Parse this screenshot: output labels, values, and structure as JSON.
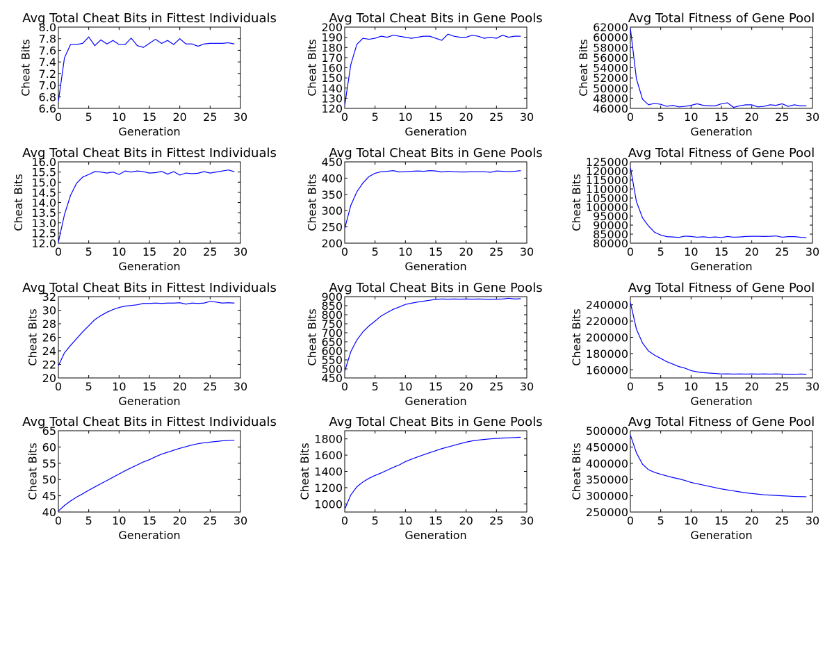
{
  "chart_data": [
    {
      "type": "line",
      "title": "Avg Total Cheat Bits in Fittest Individuals",
      "xlabel": "Generation",
      "ylabel": "Cheat Bits",
      "xlim": [
        0,
        30
      ],
      "ylim": [
        6.6,
        8.0
      ],
      "xticks": [
        0,
        5,
        10,
        15,
        20,
        25,
        30
      ],
      "yticks": [
        6.6,
        6.8,
        7.0,
        7.2,
        7.4,
        7.6,
        7.8,
        8.0
      ],
      "ytick_decimals": 1,
      "line_color": "#0000ff",
      "x": [
        0,
        1,
        2,
        3,
        4,
        5,
        6,
        7,
        8,
        9,
        10,
        11,
        12,
        13,
        14,
        15,
        16,
        17,
        18,
        19,
        20,
        21,
        22,
        23,
        24,
        25,
        26,
        27,
        28,
        29
      ],
      "y": [
        6.72,
        7.47,
        7.7,
        7.7,
        7.72,
        7.83,
        7.68,
        7.78,
        7.71,
        7.77,
        7.7,
        7.7,
        7.81,
        7.68,
        7.65,
        7.72,
        7.79,
        7.72,
        7.77,
        7.7,
        7.8,
        7.71,
        7.71,
        7.67,
        7.71,
        7.72,
        7.72,
        7.72,
        7.73,
        7.71
      ]
    },
    {
      "type": "line",
      "title": "Avg Total Cheat Bits in Gene Pools",
      "xlabel": "Generation",
      "ylabel": "Cheat Bits",
      "xlim": [
        0,
        30
      ],
      "ylim": [
        120,
        200
      ],
      "xticks": [
        0,
        5,
        10,
        15,
        20,
        25,
        30
      ],
      "yticks": [
        120,
        130,
        140,
        150,
        160,
        170,
        180,
        190,
        200
      ],
      "ytick_decimals": 0,
      "line_color": "#0000ff",
      "x": [
        0,
        1,
        2,
        3,
        4,
        5,
        6,
        7,
        8,
        9,
        10,
        11,
        12,
        13,
        14,
        15,
        16,
        17,
        18,
        19,
        20,
        21,
        22,
        23,
        24,
        25,
        26,
        27,
        28,
        29
      ],
      "y": [
        123,
        163,
        183,
        189,
        188,
        189,
        191,
        190,
        192,
        191,
        190,
        189,
        190,
        191,
        191,
        189,
        187,
        193,
        191,
        190,
        190,
        192,
        191,
        189,
        190,
        189,
        192,
        190,
        191,
        191
      ]
    },
    {
      "type": "line",
      "title": "Avg Total Fitness of Gene Pool",
      "xlabel": "Generation",
      "ylabel": "Cheat Bits",
      "xlim": [
        0,
        30
      ],
      "ylim": [
        46000,
        62000
      ],
      "xticks": [
        0,
        5,
        10,
        15,
        20,
        25,
        30
      ],
      "yticks": [
        46000,
        48000,
        50000,
        52000,
        54000,
        56000,
        58000,
        60000,
        62000
      ],
      "ytick_decimals": 0,
      "line_color": "#0000ff",
      "x": [
        0,
        1,
        2,
        3,
        4,
        5,
        6,
        7,
        8,
        9,
        10,
        11,
        12,
        13,
        14,
        15,
        16,
        17,
        18,
        19,
        20,
        21,
        22,
        23,
        24,
        25,
        26,
        27,
        28,
        29
      ],
      "y": [
        61800,
        51800,
        47800,
        46700,
        47000,
        46800,
        46400,
        46600,
        46300,
        46400,
        46600,
        46900,
        46600,
        46500,
        46500,
        46900,
        47100,
        46200,
        46500,
        46700,
        46700,
        46300,
        46400,
        46700,
        46600,
        46900,
        46400,
        46700,
        46500,
        46500
      ]
    },
    {
      "type": "line",
      "title": "Avg Total Cheat Bits in Fittest Individuals",
      "xlabel": "Generation",
      "ylabel": "Cheat Bits",
      "xlim": [
        0,
        30
      ],
      "ylim": [
        12.0,
        16.0
      ],
      "xticks": [
        0,
        5,
        10,
        15,
        20,
        25,
        30
      ],
      "yticks": [
        12.0,
        12.5,
        13.0,
        13.5,
        14.0,
        14.5,
        15.0,
        15.5,
        16.0
      ],
      "ytick_decimals": 1,
      "line_color": "#0000ff",
      "x": [
        0,
        1,
        2,
        3,
        4,
        5,
        6,
        7,
        8,
        9,
        10,
        11,
        12,
        13,
        14,
        15,
        16,
        17,
        18,
        19,
        20,
        21,
        22,
        23,
        24,
        25,
        26,
        27,
        28,
        29
      ],
      "y": [
        12.05,
        13.4,
        14.35,
        14.95,
        15.25,
        15.38,
        15.52,
        15.5,
        15.45,
        15.5,
        15.38,
        15.55,
        15.5,
        15.55,
        15.52,
        15.45,
        15.47,
        15.53,
        15.4,
        15.52,
        15.35,
        15.45,
        15.42,
        15.44,
        15.52,
        15.45,
        15.5,
        15.55,
        15.6,
        15.52
      ]
    },
    {
      "type": "line",
      "title": "Avg Total Cheat Bits in Gene Pools",
      "xlabel": "Generation",
      "ylabel": "Cheat Bits",
      "xlim": [
        0,
        30
      ],
      "ylim": [
        200,
        450
      ],
      "xticks": [
        0,
        5,
        10,
        15,
        20,
        25,
        30
      ],
      "yticks": [
        200,
        250,
        300,
        350,
        400,
        450
      ],
      "ytick_decimals": 0,
      "line_color": "#0000ff",
      "x": [
        0,
        1,
        2,
        3,
        4,
        5,
        6,
        7,
        8,
        9,
        10,
        11,
        12,
        13,
        14,
        15,
        16,
        17,
        18,
        19,
        20,
        21,
        22,
        23,
        24,
        25,
        26,
        27,
        28,
        29
      ],
      "y": [
        245,
        316,
        358,
        385,
        405,
        415,
        420,
        421,
        423,
        419,
        420,
        421,
        422,
        421,
        423,
        422,
        419,
        421,
        420,
        419,
        419,
        420,
        420,
        420,
        418,
        422,
        421,
        420,
        421,
        423
      ]
    },
    {
      "type": "line",
      "title": "Avg Total Fitness of Gene Pool",
      "xlabel": "Generation",
      "ylabel": "Cheat Bits",
      "xlim": [
        0,
        30
      ],
      "ylim": [
        80000,
        125000
      ],
      "xticks": [
        0,
        5,
        10,
        15,
        20,
        25,
        30
      ],
      "yticks": [
        80000,
        85000,
        90000,
        95000,
        100000,
        105000,
        110000,
        115000,
        120000,
        125000
      ],
      "ytick_decimals": 0,
      "line_color": "#0000ff",
      "x": [
        0,
        1,
        2,
        3,
        4,
        5,
        6,
        7,
        8,
        9,
        10,
        11,
        12,
        13,
        14,
        15,
        16,
        17,
        18,
        19,
        20,
        21,
        22,
        23,
        24,
        25,
        26,
        27,
        28,
        29
      ],
      "y": [
        122000,
        103000,
        94000,
        89500,
        86000,
        84500,
        83600,
        83400,
        83200,
        83900,
        83700,
        83300,
        83500,
        83200,
        83400,
        83100,
        83700,
        83300,
        83400,
        83700,
        83800,
        83800,
        83700,
        83800,
        84000,
        83300,
        83600,
        83600,
        83300,
        83000
      ]
    },
    {
      "type": "line",
      "title": "Avg Total Cheat Bits in Fittest Individuals",
      "xlabel": "Generation",
      "ylabel": "Cheat Bits",
      "xlim": [
        0,
        30
      ],
      "ylim": [
        20,
        32
      ],
      "xticks": [
        0,
        5,
        10,
        15,
        20,
        25,
        30
      ],
      "yticks": [
        20,
        22,
        24,
        26,
        28,
        30,
        32
      ],
      "ytick_decimals": 0,
      "line_color": "#0000ff",
      "x": [
        0,
        1,
        2,
        3,
        4,
        5,
        6,
        7,
        8,
        9,
        10,
        11,
        12,
        13,
        14,
        15,
        16,
        17,
        18,
        19,
        20,
        21,
        22,
        23,
        24,
        25,
        26,
        27,
        28,
        29
      ],
      "y": [
        21.8,
        23.7,
        24.8,
        25.8,
        26.8,
        27.7,
        28.6,
        29.2,
        29.7,
        30.1,
        30.4,
        30.6,
        30.7,
        30.8,
        31.0,
        31.0,
        31.05,
        31.0,
        31.05,
        31.05,
        31.1,
        30.9,
        31.05,
        31.0,
        31.05,
        31.3,
        31.2,
        31.05,
        31.1,
        31.05
      ]
    },
    {
      "type": "line",
      "title": "Avg Total Cheat Bits in Gene Pools",
      "xlabel": "Generation",
      "ylabel": "Cheat Bits",
      "xlim": [
        0,
        30
      ],
      "ylim": [
        450,
        900
      ],
      "xticks": [
        0,
        5,
        10,
        15,
        20,
        25,
        30
      ],
      "yticks": [
        450,
        500,
        550,
        600,
        650,
        700,
        750,
        800,
        850,
        900
      ],
      "ytick_decimals": 0,
      "line_color": "#0000ff",
      "x": [
        0,
        1,
        2,
        3,
        4,
        5,
        6,
        7,
        8,
        9,
        10,
        11,
        12,
        13,
        14,
        15,
        16,
        17,
        18,
        19,
        20,
        21,
        22,
        23,
        24,
        25,
        26,
        27,
        28,
        29
      ],
      "y": [
        487,
        595,
        660,
        705,
        738,
        765,
        793,
        812,
        830,
        843,
        857,
        864,
        870,
        875,
        880,
        885,
        887,
        886,
        887,
        886,
        887,
        886,
        887,
        886,
        885,
        886,
        887,
        891,
        887,
        889
      ]
    },
    {
      "type": "line",
      "title": "Avg Total Fitness of Gene Pool",
      "xlabel": "Generation",
      "ylabel": "Cheat Bits",
      "xlim": [
        0,
        30
      ],
      "ylim": [
        150000,
        250000
      ],
      "xticks": [
        0,
        5,
        10,
        15,
        20,
        25,
        30
      ],
      "yticks": [
        160000,
        180000,
        200000,
        220000,
        240000
      ],
      "ytick_decimals": 0,
      "line_color": "#0000ff",
      "x": [
        0,
        1,
        2,
        3,
        4,
        5,
        6,
        7,
        8,
        9,
        10,
        11,
        12,
        13,
        14,
        15,
        16,
        17,
        18,
        19,
        20,
        21,
        22,
        23,
        24,
        25,
        26,
        27,
        28,
        29
      ],
      "y": [
        243000,
        210000,
        193000,
        183000,
        178000,
        174000,
        170000,
        167000,
        164000,
        162000,
        159000,
        157500,
        156500,
        156000,
        155500,
        154800,
        155000,
        154700,
        154900,
        154700,
        154900,
        154700,
        154900,
        154700,
        154900,
        154700,
        154500,
        154300,
        154800,
        154500
      ]
    },
    {
      "type": "line",
      "title": "Avg Total Cheat Bits in Fittest Individuals",
      "xlabel": "Generation",
      "ylabel": "Cheat Bits",
      "xlim": [
        0,
        30
      ],
      "ylim": [
        40,
        65
      ],
      "xticks": [
        0,
        5,
        10,
        15,
        20,
        25,
        30
      ],
      "yticks": [
        40,
        45,
        50,
        55,
        60,
        65
      ],
      "ytick_decimals": 0,
      "line_color": "#0000ff",
      "x": [
        0,
        1,
        2,
        3,
        4,
        5,
        6,
        7,
        8,
        9,
        10,
        11,
        12,
        13,
        14,
        15,
        16,
        17,
        18,
        19,
        20,
        21,
        22,
        23,
        24,
        25,
        26,
        27,
        28,
        29
      ],
      "y": [
        40.3,
        42.0,
        43.4,
        44.6,
        45.6,
        46.7,
        47.7,
        48.7,
        49.7,
        50.7,
        51.7,
        52.7,
        53.6,
        54.5,
        55.4,
        56.1,
        57.0,
        57.8,
        58.4,
        59.0,
        59.6,
        60.1,
        60.6,
        61.0,
        61.3,
        61.5,
        61.7,
        61.9,
        62.0,
        62.1
      ]
    },
    {
      "type": "line",
      "title": "Avg Total Cheat Bits in Gene Pools",
      "xlabel": "Generation",
      "ylabel": "Cheat Bits",
      "xlim": [
        0,
        30
      ],
      "ylim": [
        900,
        1900
      ],
      "xticks": [
        0,
        5,
        10,
        15,
        20,
        25,
        30
      ],
      "yticks": [
        1000,
        1200,
        1400,
        1600,
        1800
      ],
      "ytick_decimals": 0,
      "line_color": "#0000ff",
      "x": [
        0,
        1,
        2,
        3,
        4,
        5,
        6,
        7,
        8,
        9,
        10,
        11,
        12,
        13,
        14,
        15,
        16,
        17,
        18,
        19,
        20,
        21,
        22,
        23,
        24,
        25,
        26,
        27,
        28,
        29
      ],
      "y": [
        935,
        1110,
        1210,
        1270,
        1315,
        1350,
        1380,
        1415,
        1450,
        1480,
        1520,
        1550,
        1578,
        1605,
        1630,
        1655,
        1680,
        1700,
        1720,
        1740,
        1760,
        1775,
        1785,
        1793,
        1800,
        1805,
        1810,
        1813,
        1816,
        1820
      ]
    },
    {
      "type": "line",
      "title": "Avg Total Fitness of Gene Pool",
      "xlabel": "Generation",
      "ylabel": "Cheat Bits",
      "xlim": [
        0,
        30
      ],
      "ylim": [
        250000,
        500000
      ],
      "xticks": [
        0,
        5,
        10,
        15,
        20,
        25,
        30
      ],
      "yticks": [
        250000,
        300000,
        350000,
        400000,
        450000,
        500000
      ],
      "ytick_decimals": 0,
      "line_color": "#0000ff",
      "x": [
        0,
        1,
        2,
        3,
        4,
        5,
        6,
        7,
        8,
        9,
        10,
        11,
        12,
        13,
        14,
        15,
        16,
        17,
        18,
        19,
        20,
        21,
        22,
        23,
        24,
        25,
        26,
        27,
        28,
        29
      ],
      "y": [
        487000,
        432000,
        397000,
        380000,
        372000,
        366000,
        361000,
        356000,
        352000,
        347000,
        341000,
        337000,
        333000,
        329000,
        325000,
        321000,
        318000,
        315000,
        312000,
        309000,
        307000,
        305000,
        303000,
        302000,
        301000,
        300000,
        299000,
        298000,
        297500,
        297000
      ]
    }
  ]
}
